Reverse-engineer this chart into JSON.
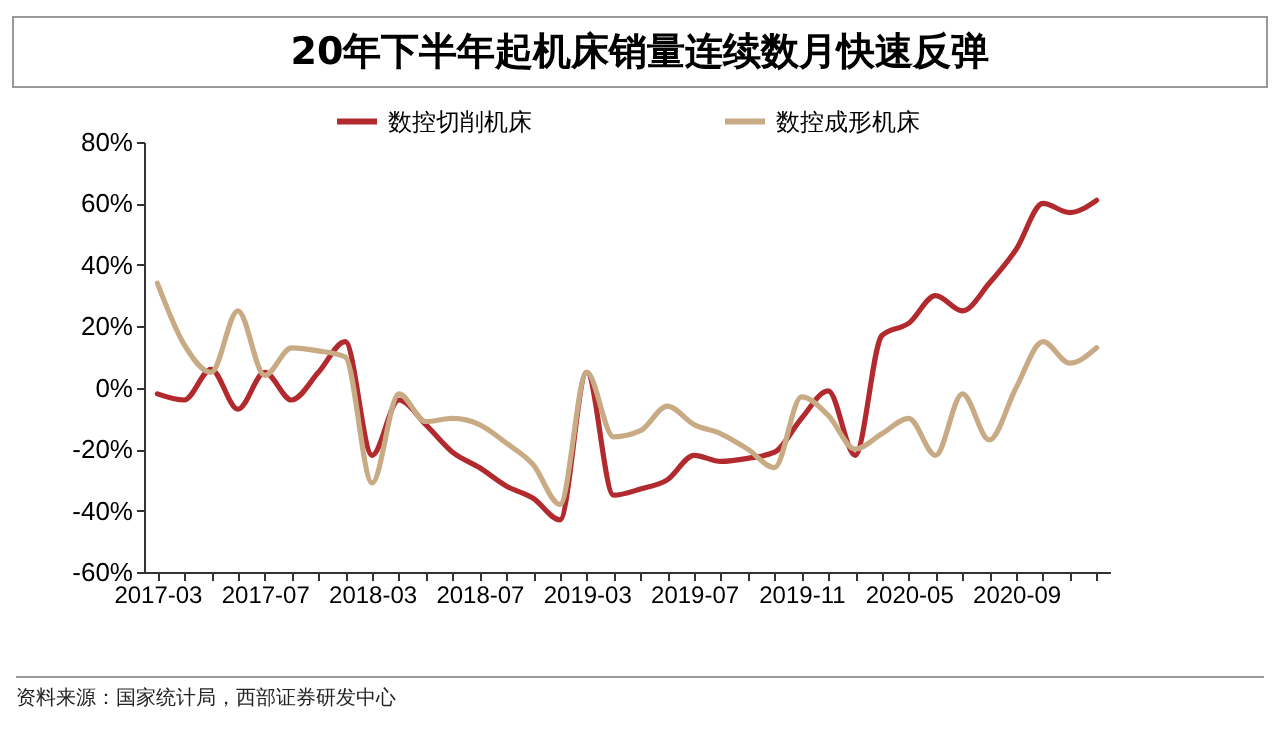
{
  "chart_data": {
    "type": "line",
    "title": "20年下半年起机床销量连续数月快速反弹",
    "categories": [
      "2017-03",
      null,
      null,
      null,
      "2017-07",
      null,
      null,
      null,
      "2018-03",
      null,
      null,
      null,
      "2018-07",
      null,
      null,
      null,
      "2019-03",
      null,
      null,
      null,
      "2019-07",
      null,
      null,
      null,
      "2019-11",
      null,
      null,
      null,
      "2020-05",
      null,
      null,
      null,
      "2020-09",
      null,
      null,
      null
    ],
    "series": [
      {
        "name": "数控切削机床",
        "color": "#b22a2e",
        "values": [
          -2,
          -4,
          6,
          -7,
          5,
          -4,
          5,
          15,
          -22,
          -4,
          -12,
          -21,
          -26,
          -32,
          -36,
          -43,
          5,
          -35,
          -33,
          -30,
          -22,
          -24,
          -23,
          -21,
          -10,
          -1,
          -22,
          17,
          21,
          30,
          25,
          34,
          45,
          60,
          57,
          61
        ]
      },
      {
        "name": "数控成形机床",
        "color": "#c8ab85",
        "values": [
          34,
          14,
          5,
          25,
          4,
          13,
          12,
          10,
          -31,
          -2,
          -11,
          -10,
          -12,
          -18,
          -25,
          -38,
          5,
          -16,
          -14,
          -6,
          -12,
          -15,
          -20,
          -26,
          -3,
          -9,
          -20,
          -15,
          -10,
          -22,
          -2,
          -17,
          0,
          15,
          8,
          13
        ]
      }
    ],
    "ylim": [
      -60,
      80
    ],
    "yticks": [
      {
        "value": -60,
        "label": "-60%"
      },
      {
        "value": -40,
        "label": "-40%"
      },
      {
        "value": -20,
        "label": "-20%"
      },
      {
        "value": 0,
        "label": "0%"
      },
      {
        "value": 20,
        "label": "20%"
      },
      {
        "value": 40,
        "label": "40%"
      },
      {
        "value": 60,
        "label": "60%"
      },
      {
        "value": 80,
        "label": "80%"
      }
    ],
    "legend": "top",
    "annotations": [
      "资料来源：国家统计局，西部证券研发中心"
    ]
  }
}
